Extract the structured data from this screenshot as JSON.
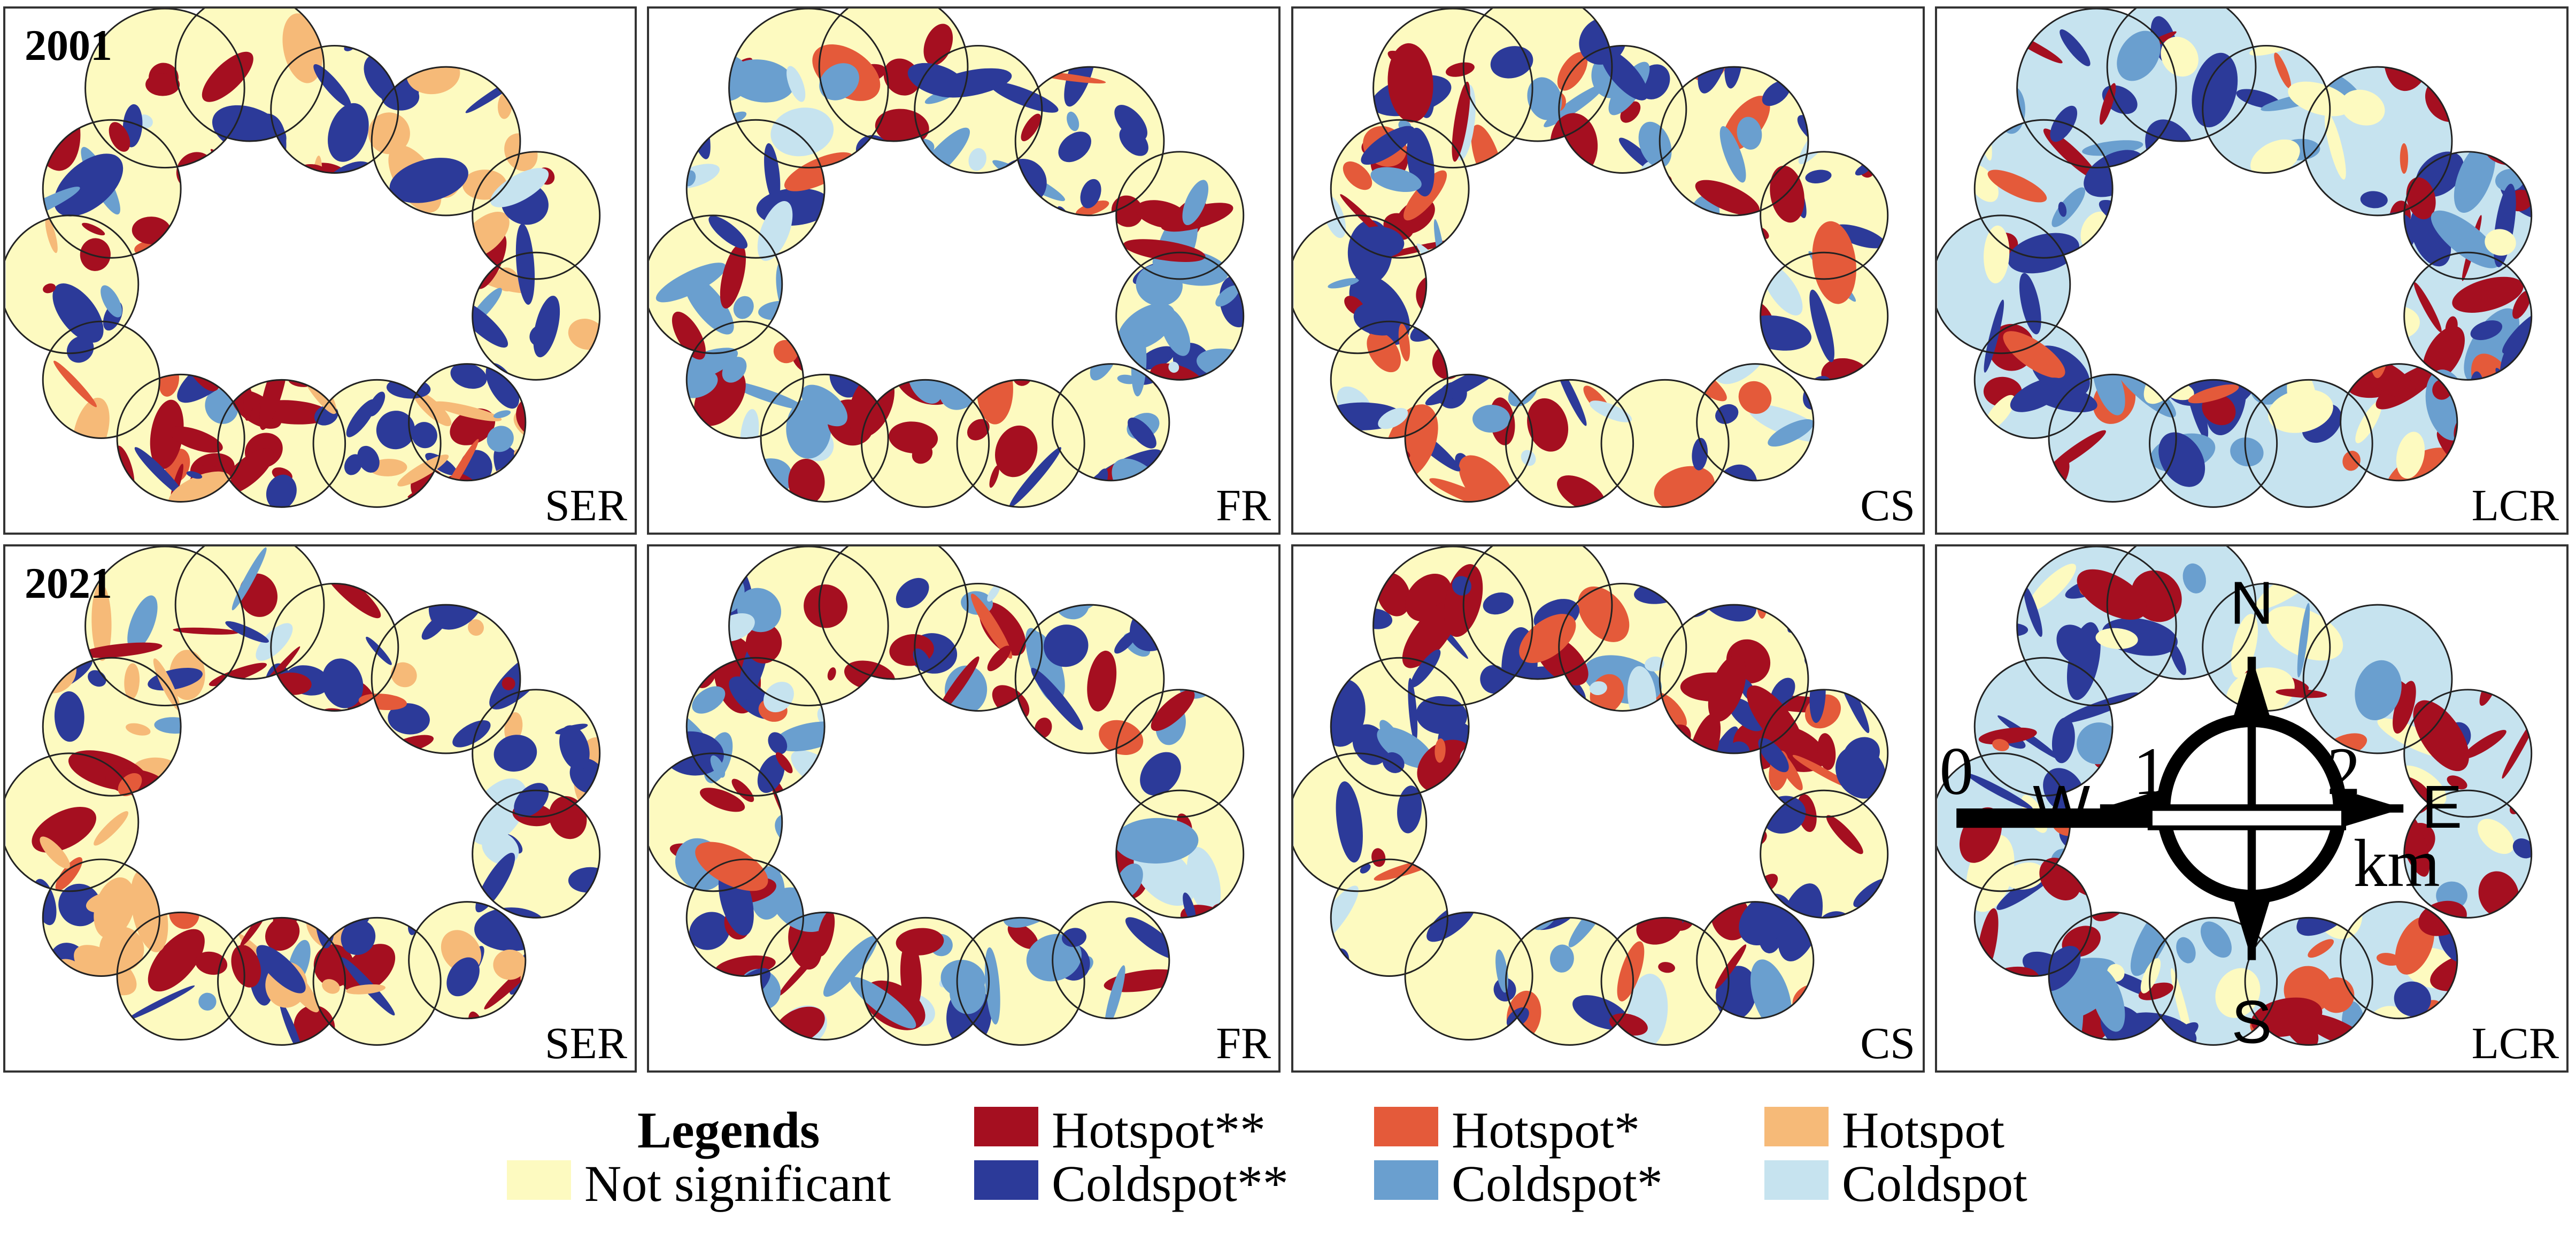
{
  "colors": {
    "hotspot_99": "#a50f20",
    "hotspot_95": "#e45a3a",
    "hotspot_90": "#f6ba78",
    "not_significant": "#fdfac0",
    "coldspot_90": "#c6e3ef",
    "coldspot_95": "#6a9fcf",
    "coldspot_99": "#2c3a99",
    "outline": "#222222"
  },
  "years": [
    "2001",
    "2021"
  ],
  "variables": [
    "SER",
    "FR",
    "CS",
    "LCR"
  ],
  "compass": {
    "n": "N",
    "s": "S",
    "e": "E",
    "w": "W",
    "icon": "north-arrow-compass-icon"
  },
  "scalebar": {
    "ticks": [
      "0",
      "1",
      "2"
    ],
    "unit": "km"
  },
  "legend": {
    "title": "Legends",
    "items": [
      {
        "label": "Not significant",
        "color": "#fdfac0"
      },
      {
        "label": "Hotspot**",
        "color": "#a50f20"
      },
      {
        "label": "Coldspot**",
        "color": "#2c3a99"
      },
      {
        "label": "Hotspot*",
        "color": "#e45a3a"
      },
      {
        "label": "Coldspot*",
        "color": "#6a9fcf"
      },
      {
        "label": "Hotspot",
        "color": "#f6ba78"
      },
      {
        "label": "Coldspot",
        "color": "#c6e3ef"
      }
    ]
  }
}
